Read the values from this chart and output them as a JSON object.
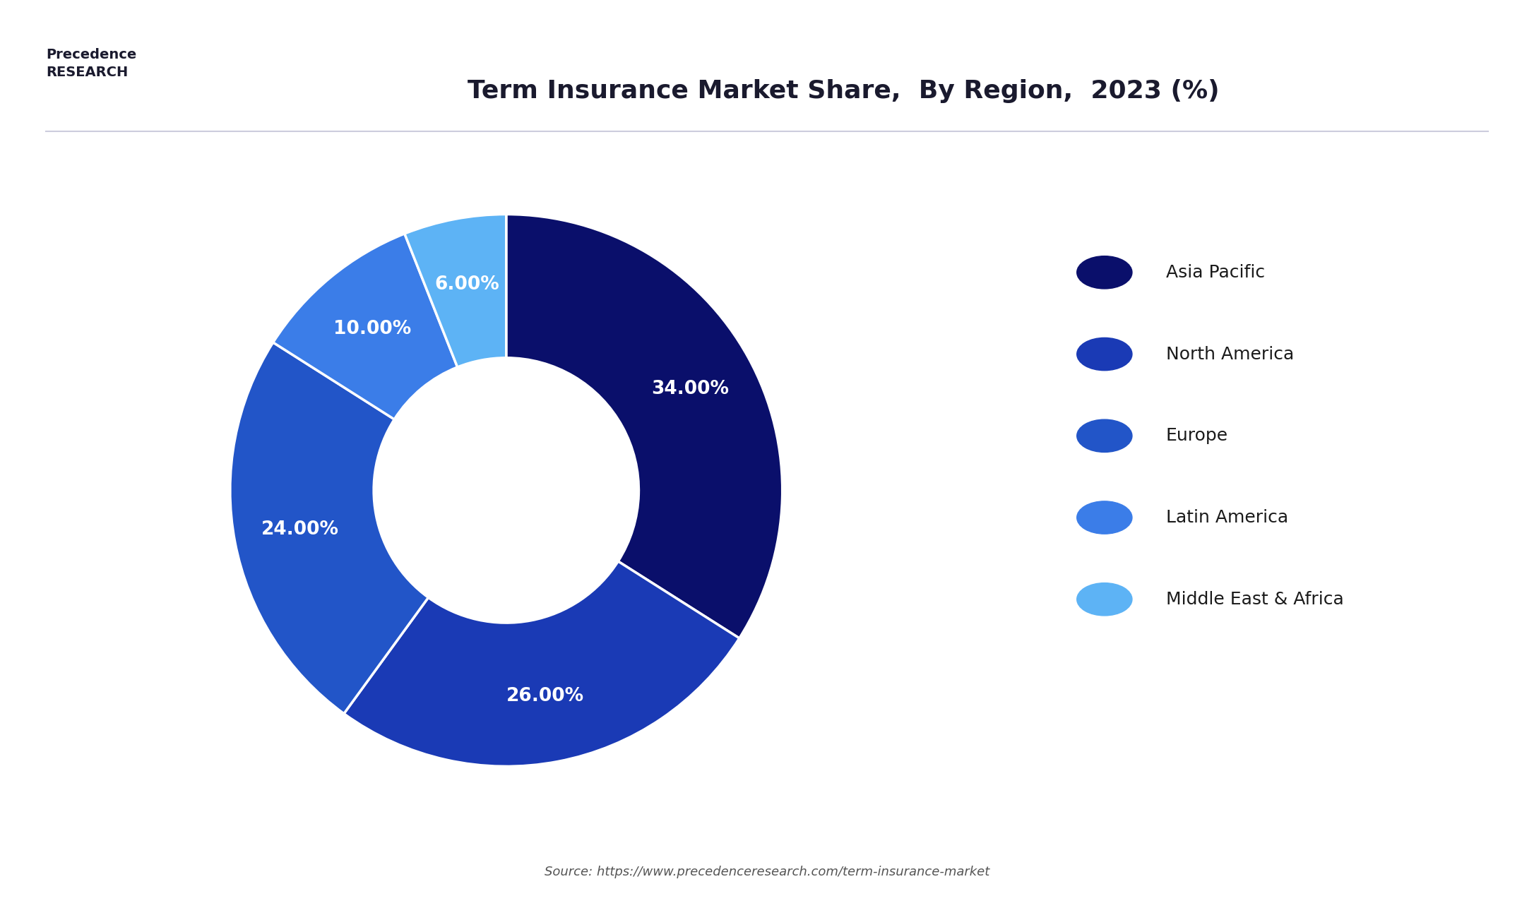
{
  "title": "Term Insurance Market Share,  By Region,  2023 (%)",
  "labels": [
    "Asia Pacific",
    "North America",
    "Europe",
    "Latin America",
    "Middle East & Africa"
  ],
  "values": [
    34.0,
    26.0,
    24.0,
    10.0,
    6.0
  ],
  "colors": [
    "#0a0f6b",
    "#1a3ab5",
    "#2255c8",
    "#3b7de8",
    "#5db3f5"
  ],
  "pct_labels": [
    "34.00%",
    "26.00%",
    "24.00%",
    "10.00%",
    "6.00%"
  ],
  "source_text": "Source: https://www.precedenceresearch.com/term-insurance-market",
  "background_color": "#ffffff",
  "title_fontsize": 26,
  "legend_fontsize": 18,
  "pct_fontsize": 19,
  "wedge_linewidth": 2.5,
  "startangle": 90
}
